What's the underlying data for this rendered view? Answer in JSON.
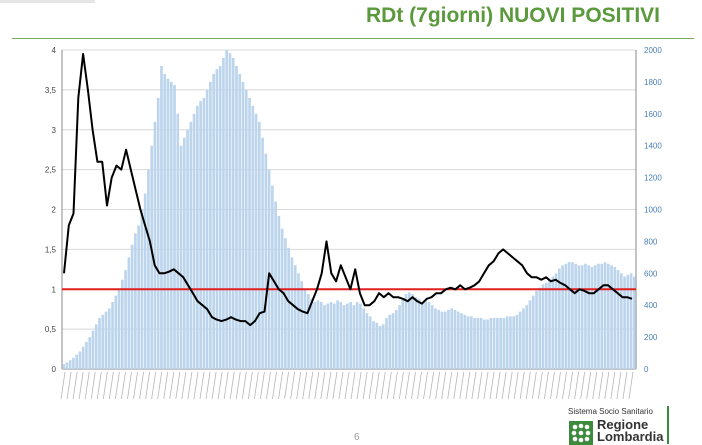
{
  "header": {
    "title": "RDt (7giorni) NUOVI POSITIVI",
    "page_number": "6"
  },
  "logo": {
    "subtitle": "Sistema Socio Sanitario",
    "name_line1": "Regione",
    "name_line2": "Lombardia"
  },
  "colors": {
    "title": "#5a9a3c",
    "bars": "#bcd5ec",
    "line": "#000000",
    "threshold": "#e02020",
    "right_axis_text": "#4a7fb5",
    "logo_green": "#3c8a3c"
  },
  "chart_data": {
    "type": "bar",
    "title": "",
    "xlabel": "",
    "ylabel": "",
    "x_tick_labels_legible": false,
    "grid": true,
    "left_axis": {
      "ylim": [
        0,
        4
      ],
      "ticks": [
        "0",
        "0,5",
        "1",
        "1,5",
        "2",
        "2,5",
        "3",
        "3,5",
        "4"
      ]
    },
    "right_axis": {
      "ylim": [
        0,
        2000
      ],
      "ticks": [
        "0",
        "200",
        "400",
        "600",
        "800",
        "1000",
        "1200",
        "1400",
        "1600",
        "1800",
        "2000"
      ]
    },
    "threshold": {
      "value": 1,
      "axis": "left"
    },
    "series": [
      {
        "kind": "bar",
        "axis": "right",
        "values": [
          30,
          40,
          55,
          70,
          90,
          110,
          140,
          170,
          200,
          240,
          280,
          320,
          340,
          360,
          380,
          420,
          460,
          500,
          560,
          620,
          700,
          780,
          850,
          900,
          1000,
          1100,
          1250,
          1400,
          1550,
          1700,
          1900,
          1850,
          1820,
          1800,
          1780,
          1600,
          1400,
          1450,
          1500,
          1550,
          1600,
          1650,
          1680,
          1700,
          1750,
          1800,
          1850,
          1880,
          1900,
          1950,
          2000,
          1980,
          1950,
          1900,
          1850,
          1800,
          1750,
          1700,
          1650,
          1600,
          1550,
          1450,
          1350,
          1250,
          1150,
          1050,
          960,
          880,
          820,
          760,
          700,
          650,
          600,
          550,
          500,
          470,
          440,
          420,
          430,
          420,
          400,
          410,
          420,
          410,
          430,
          420,
          400,
          410,
          420,
          400,
          420,
          410,
          380,
          350,
          330,
          300,
          290,
          270,
          280,
          320,
          340,
          350,
          370,
          400,
          440,
          470,
          480,
          470,
          450,
          440,
          420,
          430,
          420,
          400,
          380,
          370,
          360,
          360,
          370,
          380,
          370,
          360,
          350,
          340,
          330,
          330,
          320,
          320,
          320,
          310,
          310,
          320,
          320,
          320,
          320,
          320,
          330,
          330,
          330,
          340,
          360,
          380,
          400,
          430,
          460,
          490,
          510,
          530,
          540,
          560,
          580,
          600,
          630,
          650,
          660,
          670,
          670,
          660,
          650,
          650,
          660,
          650,
          640,
          650,
          660,
          660,
          670,
          660,
          650,
          640,
          620,
          600,
          580,
          590,
          600,
          580
        ]
      },
      {
        "kind": "line",
        "axis": "left",
        "values": [
          1.2,
          1.8,
          1.95,
          3.4,
          3.95,
          3.5,
          3.0,
          2.6,
          2.6,
          2.05,
          2.4,
          2.55,
          2.5,
          2.75,
          2.5,
          2.25,
          2.0,
          1.8,
          1.6,
          1.3,
          1.2,
          1.2,
          1.22,
          1.25,
          1.2,
          1.15,
          1.05,
          0.95,
          0.85,
          0.8,
          0.75,
          0.65,
          0.62,
          0.6,
          0.62,
          0.65,
          0.62,
          0.6,
          0.6,
          0.55,
          0.6,
          0.7,
          0.72,
          1.2,
          1.1,
          1.0,
          0.95,
          0.85,
          0.8,
          0.75,
          0.72,
          0.7,
          0.85,
          1.0,
          1.2,
          1.6,
          1.2,
          1.1,
          1.3,
          1.15,
          1.0,
          1.25,
          0.95,
          0.8,
          0.8,
          0.85,
          0.95,
          0.9,
          0.95,
          0.9,
          0.9,
          0.88,
          0.85,
          0.9,
          0.85,
          0.82,
          0.88,
          0.9,
          0.95,
          0.95,
          1.0,
          1.02,
          1.0,
          1.05,
          1.0,
          1.02,
          1.05,
          1.1,
          1.2,
          1.3,
          1.35,
          1.45,
          1.5,
          1.45,
          1.4,
          1.35,
          1.3,
          1.2,
          1.15,
          1.15,
          1.12,
          1.15,
          1.1,
          1.12,
          1.08,
          1.05,
          1.0,
          0.95,
          1.0,
          0.98,
          0.95,
          0.95,
          1.0,
          1.05,
          1.05,
          1.0,
          0.95,
          0.9,
          0.9,
          0.88
        ]
      }
    ]
  }
}
